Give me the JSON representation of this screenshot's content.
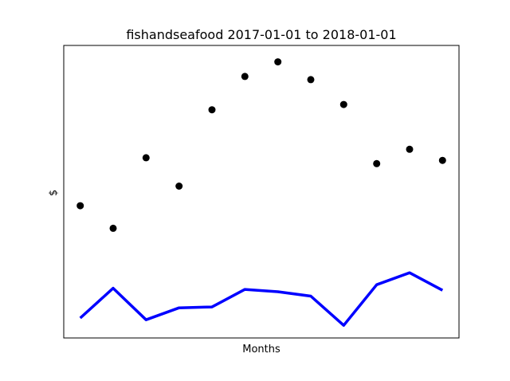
{
  "chart_data": {
    "type": "line",
    "title": "fishandseafood 2017-01-01 to 2018-01-01",
    "xlabel": "Months",
    "ylabel": "$",
    "x": [
      1,
      2,
      3,
      4,
      5,
      6,
      7,
      8,
      9,
      10,
      11,
      12
    ],
    "xlim": [
      0.5,
      12.5
    ],
    "ylim": [
      0,
      100
    ],
    "xticks_visible": false,
    "yticks_visible": false,
    "series": [
      {
        "name": "scatter",
        "kind": "scatter",
        "color": "#000000",
        "values": [
          45.2,
          37.5,
          61.6,
          51.9,
          78.0,
          89.4,
          94.4,
          88.3,
          79.8,
          59.6,
          64.5,
          60.7
        ]
      },
      {
        "name": "line",
        "kind": "line",
        "color": "#0000ff",
        "values": [
          6.8,
          17.0,
          6.2,
          10.3,
          10.6,
          16.6,
          15.8,
          14.3,
          4.3,
          18.2,
          22.3,
          16.3
        ]
      }
    ]
  }
}
